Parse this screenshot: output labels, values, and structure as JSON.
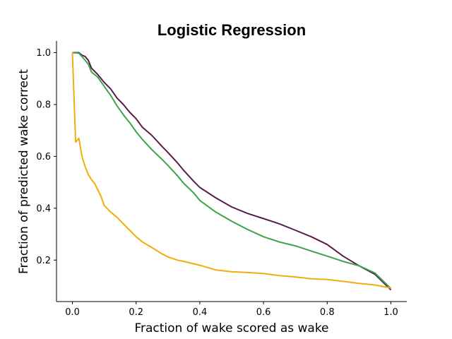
{
  "chart_data": {
    "type": "line",
    "title": "Logistic Regression",
    "xlabel": "Fraction of wake scored as wake",
    "ylabel": "Fraction of predicted wake correct",
    "xlim": [
      -0.05,
      1.05
    ],
    "ylim": [
      0.04,
      1.045
    ],
    "xticks": [
      0.0,
      0.2,
      0.4,
      0.6,
      0.8,
      1.0
    ],
    "xtick_labels": [
      "0.0",
      "0.2",
      "0.4",
      "0.6",
      "0.8",
      "1.0"
    ],
    "yticks": [
      0.2,
      0.4,
      0.6,
      0.8,
      1.0
    ],
    "ytick_labels": [
      "0.2",
      "0.4",
      "0.6",
      "0.8",
      "1.0"
    ],
    "grid": false,
    "legend": false,
    "series": [
      {
        "color": "#5a1a4a",
        "points": [
          [
            0.0,
            1.0
          ],
          [
            0.02,
            1.0
          ],
          [
            0.03,
            0.99
          ],
          [
            0.04,
            0.985
          ],
          [
            0.05,
            0.97
          ],
          [
            0.06,
            0.94
          ],
          [
            0.08,
            0.915
          ],
          [
            0.1,
            0.885
          ],
          [
            0.12,
            0.86
          ],
          [
            0.14,
            0.825
          ],
          [
            0.16,
            0.8
          ],
          [
            0.18,
            0.77
          ],
          [
            0.2,
            0.745
          ],
          [
            0.22,
            0.712
          ],
          [
            0.25,
            0.68
          ],
          [
            0.28,
            0.64
          ],
          [
            0.3,
            0.615
          ],
          [
            0.33,
            0.575
          ],
          [
            0.35,
            0.545
          ],
          [
            0.38,
            0.505
          ],
          [
            0.4,
            0.48
          ],
          [
            0.45,
            0.44
          ],
          [
            0.5,
            0.405
          ],
          [
            0.55,
            0.38
          ],
          [
            0.6,
            0.36
          ],
          [
            0.65,
            0.34
          ],
          [
            0.7,
            0.315
          ],
          [
            0.75,
            0.29
          ],
          [
            0.8,
            0.26
          ],
          [
            0.85,
            0.215
          ],
          [
            0.9,
            0.178
          ],
          [
            0.95,
            0.145
          ],
          [
            1.0,
            0.085
          ]
        ]
      },
      {
        "color": "#3aa34a",
        "points": [
          [
            0.0,
            1.0
          ],
          [
            0.02,
            0.998
          ],
          [
            0.03,
            0.985
          ],
          [
            0.04,
            0.97
          ],
          [
            0.05,
            0.955
          ],
          [
            0.06,
            0.925
          ],
          [
            0.08,
            0.905
          ],
          [
            0.1,
            0.87
          ],
          [
            0.12,
            0.835
          ],
          [
            0.14,
            0.795
          ],
          [
            0.16,
            0.76
          ],
          [
            0.18,
            0.73
          ],
          [
            0.2,
            0.695
          ],
          [
            0.22,
            0.665
          ],
          [
            0.25,
            0.625
          ],
          [
            0.28,
            0.59
          ],
          [
            0.3,
            0.565
          ],
          [
            0.33,
            0.525
          ],
          [
            0.35,
            0.495
          ],
          [
            0.38,
            0.46
          ],
          [
            0.4,
            0.43
          ],
          [
            0.45,
            0.385
          ],
          [
            0.5,
            0.35
          ],
          [
            0.55,
            0.318
          ],
          [
            0.6,
            0.29
          ],
          [
            0.65,
            0.27
          ],
          [
            0.7,
            0.255
          ],
          [
            0.75,
            0.235
          ],
          [
            0.8,
            0.215
          ],
          [
            0.85,
            0.195
          ],
          [
            0.9,
            0.178
          ],
          [
            0.95,
            0.15
          ],
          [
            1.0,
            0.09
          ]
        ]
      },
      {
        "color": "#f2ac0b",
        "points": [
          [
            0.0,
            1.0
          ],
          [
            0.01,
            0.655
          ],
          [
            0.02,
            0.67
          ],
          [
            0.03,
            0.6
          ],
          [
            0.04,
            0.56
          ],
          [
            0.05,
            0.53
          ],
          [
            0.06,
            0.51
          ],
          [
            0.07,
            0.495
          ],
          [
            0.08,
            0.47
          ],
          [
            0.09,
            0.445
          ],
          [
            0.1,
            0.41
          ],
          [
            0.12,
            0.385
          ],
          [
            0.14,
            0.365
          ],
          [
            0.16,
            0.34
          ],
          [
            0.18,
            0.315
          ],
          [
            0.2,
            0.29
          ],
          [
            0.22,
            0.27
          ],
          [
            0.25,
            0.248
          ],
          [
            0.28,
            0.225
          ],
          [
            0.3,
            0.212
          ],
          [
            0.33,
            0.2
          ],
          [
            0.35,
            0.195
          ],
          [
            0.4,
            0.18
          ],
          [
            0.45,
            0.162
          ],
          [
            0.5,
            0.155
          ],
          [
            0.55,
            0.152
          ],
          [
            0.6,
            0.148
          ],
          [
            0.65,
            0.14
          ],
          [
            0.7,
            0.135
          ],
          [
            0.75,
            0.128
          ],
          [
            0.8,
            0.125
          ],
          [
            0.85,
            0.118
          ],
          [
            0.9,
            0.11
          ],
          [
            0.95,
            0.104
          ],
          [
            1.0,
            0.092
          ]
        ]
      }
    ]
  }
}
